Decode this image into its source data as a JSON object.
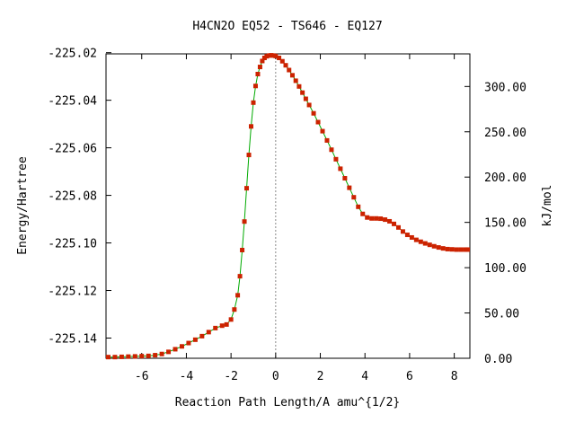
{
  "chart_data": {
    "type": "line",
    "title": "H4CN2O   EQ52 - TS646 - EQ127",
    "xlabel": "Reaction Path Length/A amu^{1/2}",
    "ylabel": "Energy/Hartree",
    "y2label": "kJ/mol",
    "xlim": [
      -7.6,
      8.7
    ],
    "ylim": [
      -225.1485,
      -225.0205
    ],
    "y2lim": [
      0.0,
      336.0
    ],
    "xticks": [
      -6,
      -4,
      -2,
      0,
      2,
      4,
      6,
      8
    ],
    "xtick_labels": [
      "-6",
      "-4",
      "-2",
      "0",
      "2",
      "4",
      "6",
      "8"
    ],
    "yticks": [
      -225.14,
      -225.12,
      -225.1,
      -225.08,
      -225.06,
      -225.04,
      -225.02
    ],
    "ytick_labels": [
      "-225.14",
      "-225.12",
      "-225.10",
      "-225.08",
      "-225.06",
      "-225.04",
      "-225.02"
    ],
    "y2ticks": [
      0,
      50,
      100,
      150,
      200,
      250,
      300
    ],
    "y2tick_labels": [
      "0.00",
      "50.00",
      "100.00",
      "150.00",
      "200.00",
      "250.00",
      "300.00"
    ],
    "ts_marker_x": 0,
    "grid": false,
    "colors": {
      "line": "#00aa00",
      "marker": "#cc2200",
      "ts_line": "#888888"
    },
    "series": [
      {
        "x": [
          -7.5,
          -7.2,
          -6.9,
          -6.6,
          -6.3,
          -6.0,
          -5.7,
          -5.4,
          -5.1,
          -4.8,
          -4.5,
          -4.2,
          -3.9,
          -3.6,
          -3.3,
          -3.0,
          -2.7,
          -2.4,
          -2.2,
          -2.0,
          -1.85,
          -1.7,
          -1.6,
          -1.5,
          -1.4,
          -1.3,
          -1.2,
          -1.1,
          -1.0,
          -0.9,
          -0.8,
          -0.7,
          -0.6,
          -0.5,
          -0.4,
          -0.3,
          -0.2,
          -0.1,
          0.0,
          0.15,
          0.3,
          0.45,
          0.6,
          0.75,
          0.9,
          1.05,
          1.2,
          1.35,
          1.5,
          1.7,
          1.9,
          2.1,
          2.3,
          2.5,
          2.7,
          2.9,
          3.1,
          3.3,
          3.5,
          3.7,
          3.9,
          4.1,
          4.3,
          4.5,
          4.7,
          4.9,
          5.1,
          5.3,
          5.5,
          5.7,
          5.9,
          6.1,
          6.3,
          6.5,
          6.7,
          6.9,
          7.1,
          7.3,
          7.5,
          7.7,
          7.9,
          8.1,
          8.3,
          8.5,
          8.6
        ],
        "y": [
          -225.148,
          -225.148,
          -225.1479,
          -225.1478,
          -225.1477,
          -225.1476,
          -225.1475,
          -225.1472,
          -225.1467,
          -225.1458,
          -225.1447,
          -225.1435,
          -225.1421,
          -225.1407,
          -225.1392,
          -225.1375,
          -225.1358,
          -225.1348,
          -225.1343,
          -225.1322,
          -225.128,
          -225.122,
          -225.114,
          -225.103,
          -225.091,
          -225.077,
          -225.063,
          -225.051,
          -225.041,
          -225.034,
          -225.029,
          -225.026,
          -225.0235,
          -225.0222,
          -225.0215,
          -225.0212,
          -225.0211,
          -225.0212,
          -225.0214,
          -225.0222,
          -225.0236,
          -225.0253,
          -225.0273,
          -225.0295,
          -225.0318,
          -225.0342,
          -225.0368,
          -225.0394,
          -225.042,
          -225.0455,
          -225.0492,
          -225.053,
          -225.0569,
          -225.0608,
          -225.0648,
          -225.0688,
          -225.0728,
          -225.0768,
          -225.0808,
          -225.0848,
          -225.0878,
          -225.0893,
          -225.0897,
          -225.0897,
          -225.0898,
          -225.0902,
          -225.0909,
          -225.092,
          -225.0935,
          -225.0952,
          -225.0966,
          -225.0977,
          -225.0987,
          -225.0995,
          -225.1002,
          -225.1008,
          -225.1014,
          -225.1019,
          -225.1023,
          -225.1026,
          -225.1027,
          -225.1028,
          -225.1028,
          -225.1028,
          -225.1028
        ]
      }
    ]
  }
}
